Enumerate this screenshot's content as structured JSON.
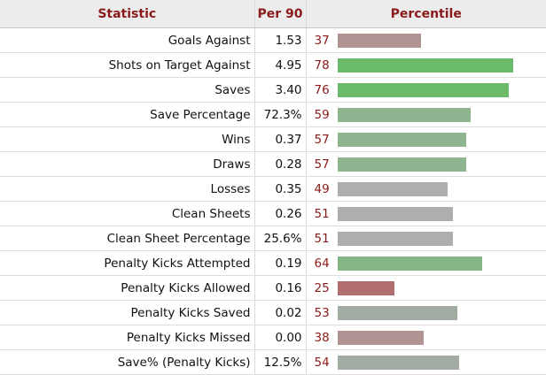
{
  "header": {
    "statistic": "Statistic",
    "per90": "Per 90",
    "percentile": "Percentile"
  },
  "bar_max_percentile": 100,
  "colors": {
    "header_text": "#8b1a1a",
    "percentile_text": "#8b1a1a",
    "bar_high": "#6bb96b",
    "bar_mid_good": "#8fb48f",
    "bar_neutral": "#aeaeae",
    "bar_mid_poor": "#b09393",
    "bar_low": "#b06e6e",
    "bar_greyish": "#a3aca3"
  },
  "rows": [
    {
      "stat": "Goals Against",
      "per90": "1.53",
      "percentile": 37,
      "color": "#b09393"
    },
    {
      "stat": "Shots on Target Against",
      "per90": "4.95",
      "percentile": 78,
      "color": "#6bb96b"
    },
    {
      "stat": "Saves",
      "per90": "3.40",
      "percentile": 76,
      "color": "#6bb96b"
    },
    {
      "stat": "Save Percentage",
      "per90": "72.3%",
      "percentile": 59,
      "color": "#8fb48f"
    },
    {
      "stat": "Wins",
      "per90": "0.37",
      "percentile": 57,
      "color": "#8fb48f"
    },
    {
      "stat": "Draws",
      "per90": "0.28",
      "percentile": 57,
      "color": "#8fb48f"
    },
    {
      "stat": "Losses",
      "per90": "0.35",
      "percentile": 49,
      "color": "#aeaeae"
    },
    {
      "stat": "Clean Sheets",
      "per90": "0.26",
      "percentile": 51,
      "color": "#aeaeae"
    },
    {
      "stat": "Clean Sheet Percentage",
      "per90": "25.6%",
      "percentile": 51,
      "color": "#aeaeae"
    },
    {
      "stat": "Penalty Kicks Attempted",
      "per90": "0.19",
      "percentile": 64,
      "color": "#85b585"
    },
    {
      "stat": "Penalty Kicks Allowed",
      "per90": "0.16",
      "percentile": 25,
      "color": "#b06e6e"
    },
    {
      "stat": "Penalty Kicks Saved",
      "per90": "0.02",
      "percentile": 53,
      "color": "#a3aca3"
    },
    {
      "stat": "Penalty Kicks Missed",
      "per90": "0.00",
      "percentile": 38,
      "color": "#b09393"
    },
    {
      "stat": "Save% (Penalty Kicks)",
      "per90": "12.5%",
      "percentile": 54,
      "color": "#a3aca3"
    }
  ]
}
